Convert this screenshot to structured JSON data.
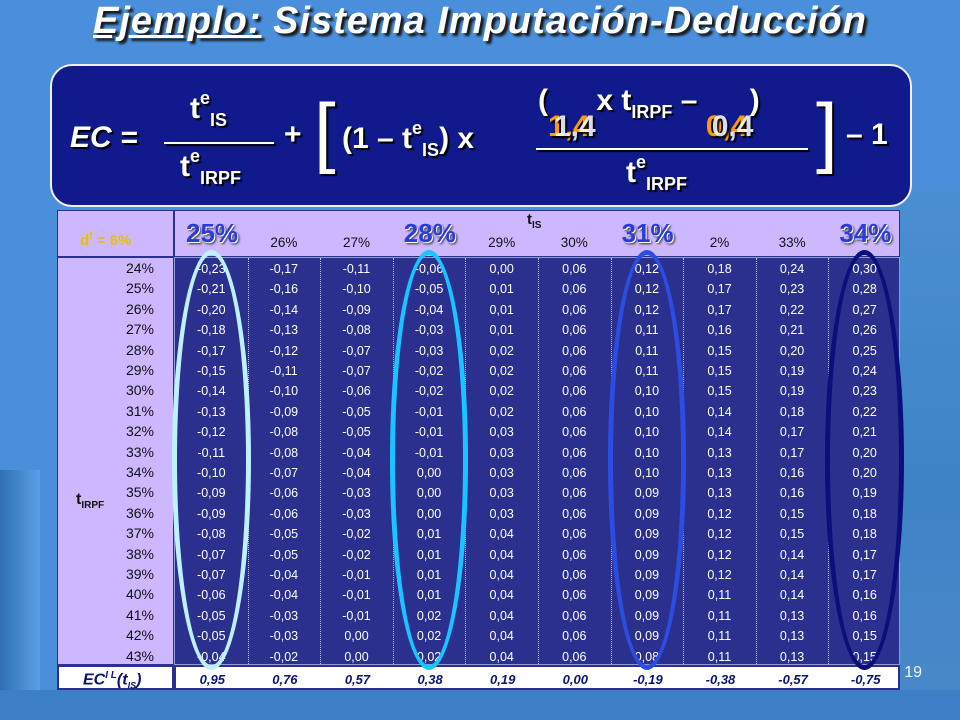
{
  "title": {
    "prefix": "Ejemplo:",
    "rest": " Sistema Imputación-Deducción"
  },
  "formula": {
    "ec": "EC =",
    "t": "t",
    "sup_e": "e",
    "sub_is": "IS",
    "sub_irpf": "IRPF",
    "plus": "+",
    "bracket_open": "[",
    "bracket_close": "]",
    "one_minus": "(1 – t",
    "times": ") x",
    "numer_open": "(",
    "coef_overlap_a": "1,4",
    "coef_overlap_b": "1,4",
    "x_t": " x t",
    "minus": " – ",
    "const_overlap_a": "0,4",
    "const_overlap_b": "0,4",
    "numer_close": ")",
    "minus_one": "– 1"
  },
  "table": {
    "df_label": "d",
    "df_sup": "f",
    "df_rest": " = 6%",
    "tis_label": "t",
    "tis_sub": "IS",
    "tirpf_label": "t",
    "tirpf_sub": "IRPF",
    "col_headers": [
      "",
      "26%",
      "27%",
      "",
      "29%",
      "30%",
      "",
      "2%",
      "33%",
      ""
    ],
    "big_headers": [
      {
        "text": "25%",
        "col": 0
      },
      {
        "text": "28%",
        "col": 3
      },
      {
        "text": "31%",
        "col": 6
      },
      {
        "text": "34%",
        "col": 9
      }
    ],
    "row_labels": [
      "24%",
      "25%",
      "26%",
      "27%",
      "28%",
      "29%",
      "30%",
      "31%",
      "32%",
      "33%",
      "34%",
      "35%",
      "36%",
      "37%",
      "38%",
      "39%",
      "40%",
      "41%",
      "42%",
      "43%"
    ],
    "rows": [
      [
        "-0,23",
        "-0,17",
        "-0,11",
        "-0,06",
        "0,00",
        "0,06",
        "0,12",
        "0,18",
        "0,24",
        "0,30"
      ],
      [
        "-0,21",
        "-0,16",
        "-0,10",
        "-0,05",
        "0,01",
        "0,06",
        "0,12",
        "0,17",
        "0,23",
        "0,28"
      ],
      [
        "-0,20",
        "-0,14",
        "-0,09",
        "-0,04",
        "0,01",
        "0,06",
        "0,12",
        "0,17",
        "0,22",
        "0,27"
      ],
      [
        "-0,18",
        "-0,13",
        "-0,08",
        "-0,03",
        "0,01",
        "0,06",
        "0,11",
        "0,16",
        "0,21",
        "0,26"
      ],
      [
        "-0,17",
        "-0,12",
        "-0,07",
        "-0,03",
        "0,02",
        "0,06",
        "0,11",
        "0,15",
        "0,20",
        "0,25"
      ],
      [
        "-0,15",
        "-0,11",
        "-0,07",
        "-0,02",
        "0,02",
        "0,06",
        "0,11",
        "0,15",
        "0,19",
        "0,24"
      ],
      [
        "-0,14",
        "-0,10",
        "-0,06",
        "-0,02",
        "0,02",
        "0,06",
        "0,10",
        "0,15",
        "0,19",
        "0,23"
      ],
      [
        "-0,13",
        "-0,09",
        "-0,05",
        "-0,01",
        "0,02",
        "0,06",
        "0,10",
        "0,14",
        "0,18",
        "0,22"
      ],
      [
        "-0,12",
        "-0,08",
        "-0,05",
        "-0,01",
        "0,03",
        "0,06",
        "0,10",
        "0,14",
        "0,17",
        "0,21"
      ],
      [
        "-0,11",
        "-0,08",
        "-0,04",
        "-0,01",
        "0,03",
        "0,06",
        "0,10",
        "0,13",
        "0,17",
        "0,20"
      ],
      [
        "-0,10",
        "-0,07",
        "-0,04",
        "0,00",
        "0,03",
        "0,06",
        "0,10",
        "0,13",
        "0,16",
        "0,20"
      ],
      [
        "-0,09",
        "-0,06",
        "-0,03",
        "0,00",
        "0,03",
        "0,06",
        "0,09",
        "0,13",
        "0,16",
        "0,19"
      ],
      [
        "-0,09",
        "-0,06",
        "-0,03",
        "0,00",
        "0,03",
        "0,06",
        "0,09",
        "0,12",
        "0,15",
        "0,18"
      ],
      [
        "-0,08",
        "-0,05",
        "-0,02",
        "0,01",
        "0,04",
        "0,06",
        "0,09",
        "0,12",
        "0,15",
        "0,18"
      ],
      [
        "-0,07",
        "-0,05",
        "-0,02",
        "0,01",
        "0,04",
        "0,06",
        "0,09",
        "0,12",
        "0,14",
        "0,17"
      ],
      [
        "-0,07",
        "-0,04",
        "-0,01",
        "0,01",
        "0,04",
        "0,06",
        "0,09",
        "0,12",
        "0,14",
        "0,17"
      ],
      [
        "-0,06",
        "-0,04",
        "-0,01",
        "0,01",
        "0,04",
        "0,06",
        "0,09",
        "0,11",
        "0,14",
        "0,16"
      ],
      [
        "-0,05",
        "-0,03",
        "-0,01",
        "0,02",
        "0,04",
        "0,06",
        "0,09",
        "0,11",
        "0,13",
        "0,16"
      ],
      [
        "-0,05",
        "-0,03",
        "0,00",
        "0,02",
        "0,04",
        "0,06",
        "0,09",
        "0,11",
        "0,13",
        "0,15"
      ],
      [
        "-0,04",
        "-0,02",
        "0,00",
        "0,02",
        "0,04",
        "0,06",
        "0,08",
        "0,11",
        "0,13",
        "0,15"
      ]
    ],
    "ec_label": "EC",
    "ec_sup": "I L",
    "ec_paren": "(t",
    "ec_sub": "IS",
    "ec_close": ")",
    "footer": [
      "0,95",
      "0,76",
      "0,57",
      "0,38",
      "0,19",
      "0,00",
      "-0,19",
      "-0,38",
      "-0,57",
      "-0,75"
    ]
  },
  "highlights": [
    {
      "col": 0,
      "color": "#bff0ff"
    },
    {
      "col": 3,
      "color": "#19c4ff"
    },
    {
      "col": 6,
      "color": "#2d4de0"
    },
    {
      "col": 9,
      "color": "#0a0f7a"
    }
  ],
  "page_number": "19"
}
